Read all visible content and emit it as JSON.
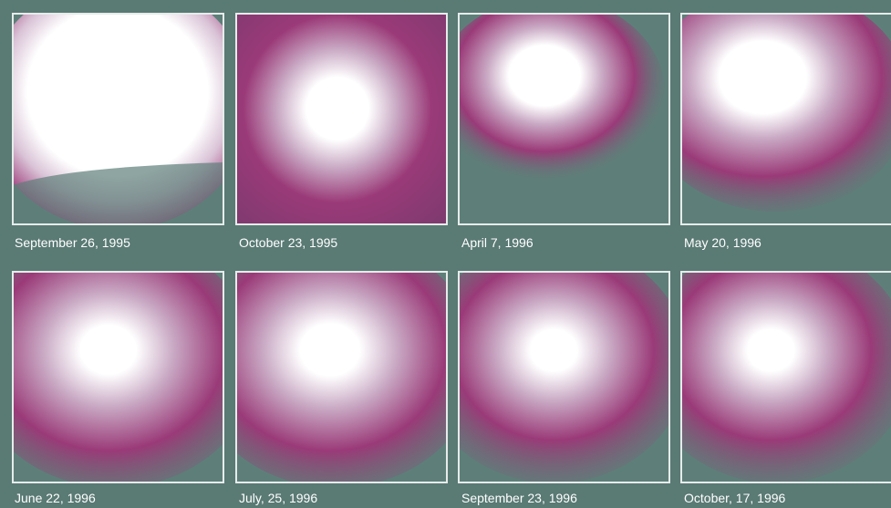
{
  "panels": [
    {
      "caption": "September 26, 1995"
    },
    {
      "caption": "October 23, 1995"
    },
    {
      "caption": "April 7, 1996"
    },
    {
      "caption": "May 20, 1996"
    },
    {
      "caption": "June 22, 1996"
    },
    {
      "caption": "July, 25, 1996"
    },
    {
      "caption": "September 23, 1996"
    },
    {
      "caption": "October, 17, 1996"
    }
  ],
  "colors": {
    "background": "#5a7a74",
    "halo": "#9a3a78",
    "core": "#ffffff",
    "frame": "#e6ecea"
  }
}
